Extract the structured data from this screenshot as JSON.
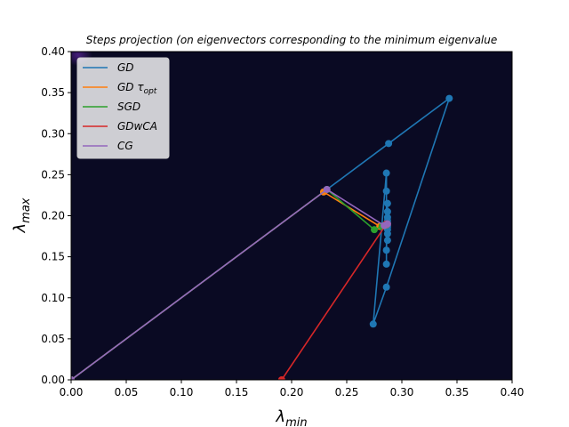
{
  "chart_data": {
    "type": "line",
    "title": "Steps projection (on eigenvectors corresponding to the minimum eigenvalue",
    "xlabel": "λ",
    "xlabel_sub": "min",
    "ylabel": "λ",
    "ylabel_sub": "max",
    "xlim": [
      0,
      0.4
    ],
    "ylim": [
      0,
      0.4
    ],
    "xticks": [
      "0.00",
      "0.05",
      "0.10",
      "0.15",
      "0.20",
      "0.25",
      "0.30",
      "0.35",
      "0.40"
    ],
    "yticks": [
      "0.00",
      "0.05",
      "0.10",
      "0.15",
      "0.20",
      "0.25",
      "0.30",
      "0.35",
      "0.40"
    ],
    "background": "#0a0a23",
    "grid": false,
    "legend_position": "top-left",
    "series": [
      {
        "name": "GD",
        "name_sub": "",
        "color": "#1f77b4",
        "points": [
          [
            0.0,
            0.0
          ],
          [
            0.229,
            0.229
          ],
          [
            0.288,
            0.288
          ],
          [
            0.343,
            0.343
          ],
          [
            0.286,
            0.113
          ],
          [
            0.274,
            0.068
          ],
          [
            0.286,
            0.252
          ],
          [
            0.286,
            0.141
          ],
          [
            0.286,
            0.23
          ],
          [
            0.286,
            0.158
          ],
          [
            0.287,
            0.215
          ],
          [
            0.287,
            0.17
          ],
          [
            0.287,
            0.205
          ],
          [
            0.287,
            0.178
          ],
          [
            0.287,
            0.198
          ],
          [
            0.287,
            0.183
          ],
          [
            0.287,
            0.194
          ],
          [
            0.287,
            0.186
          ],
          [
            0.287,
            0.191
          ],
          [
            0.287,
            0.188
          ]
        ]
      },
      {
        "name": "GD τ",
        "name_sub": "opt",
        "color": "#ff7f0e",
        "points": [
          [
            0.0,
            0.0
          ],
          [
            0.229,
            0.229
          ],
          [
            0.28,
            0.187
          ],
          [
            0.284,
            0.188
          ],
          [
            0.286,
            0.189
          ]
        ]
      },
      {
        "name": "SGD",
        "name_sub": "",
        "color": "#2ca02c",
        "points": [
          [
            0.0,
            0.0
          ],
          [
            0.232,
            0.232
          ],
          [
            0.275,
            0.183
          ],
          [
            0.282,
            0.187
          ],
          [
            0.285,
            0.189
          ]
        ]
      },
      {
        "name": "GDwCA",
        "name_sub": "",
        "color": "#d62728",
        "points": [
          [
            0.191,
            0.0
          ],
          [
            0.286,
            0.19
          ],
          [
            0.287,
            0.19
          ]
        ]
      },
      {
        "name": "CG",
        "name_sub": "",
        "color": "#9467bd",
        "points": [
          [
            0.0,
            0.0
          ],
          [
            0.232,
            0.232
          ],
          [
            0.284,
            0.188
          ],
          [
            0.287,
            0.19
          ]
        ]
      }
    ]
  }
}
